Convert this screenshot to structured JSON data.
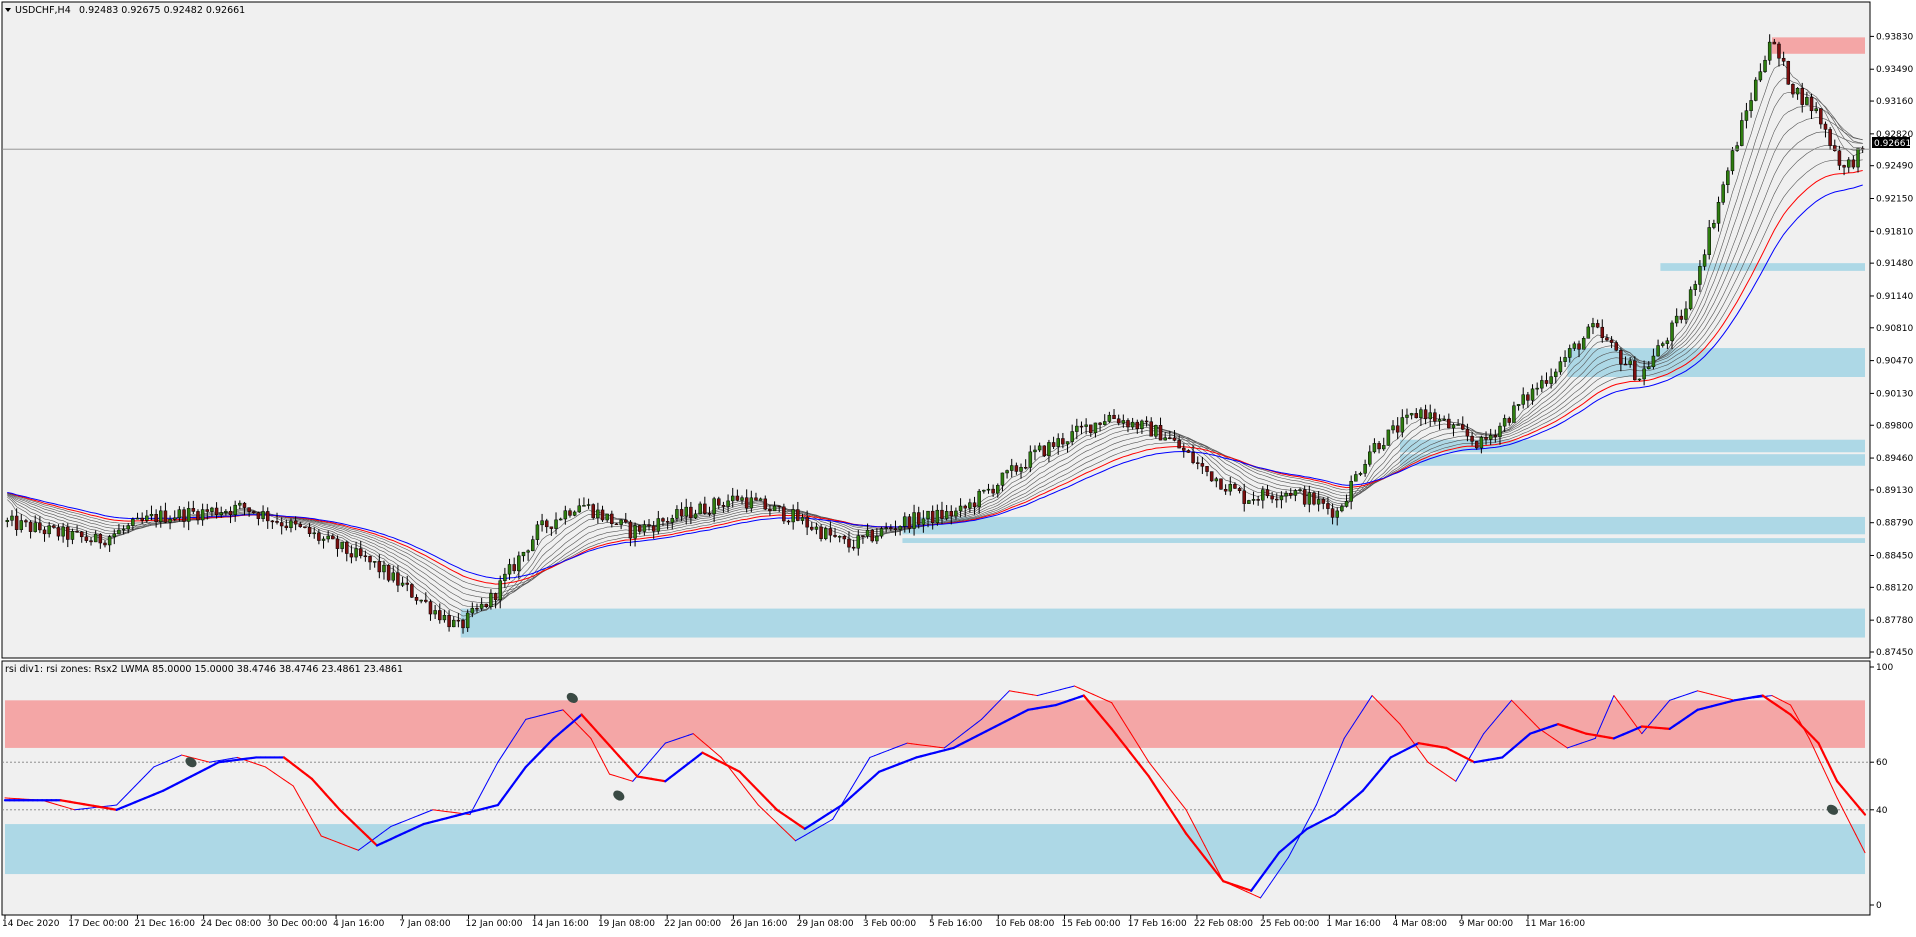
{
  "window": {
    "title": "USDCHF,H4",
    "ohlc": "0.92483 0.92675 0.92482 0.92661",
    "menu_icon": "triangle-down-icon"
  },
  "indicator": {
    "label": "rsi div1: rsi zones: Rsx2 LWMA 85.0000 15.0000 38.4746 38.4746 23.4861 23.4861"
  },
  "colors": {
    "background": "#f0f0f0",
    "candle_up": "#2e7d0f",
    "candle_down": "#7a0f0f",
    "wick": "#000000",
    "ma_red": "#ff0000",
    "ma_blue": "#0000ff",
    "ma_gray": "#555555",
    "zone_blue": "#add8e6",
    "zone_red": "#f4a6a6",
    "marker": "#3a4a44",
    "price_tag_bg": "#000000"
  },
  "chart_data": [
    {
      "type": "candlestick",
      "symbol": "USDCHF",
      "timeframe": "H4",
      "current_price": 0.92661,
      "current_price_label": "0.92661",
      "ylim": [
        0.8745,
        0.94
      ],
      "y_ticks": [
        "0.93830",
        "0.93490",
        "0.93160",
        "0.92820",
        "0.92490",
        "0.92150",
        "0.91810",
        "0.91480",
        "0.91140",
        "0.90810",
        "0.90470",
        "0.90130",
        "0.89800",
        "0.89460",
        "0.89130",
        "0.88790",
        "0.88450",
        "0.88120",
        "0.87780",
        "0.87450"
      ],
      "x_ticks": [
        "14 Dec 2020",
        "17 Dec 00:00",
        "21 Dec 16:00",
        "24 Dec 08:00",
        "30 Dec 00:00",
        "4 Jan 16:00",
        "7 Jan 08:00",
        "12 Jan 00:00",
        "14 Jan 16:00",
        "19 Jan 08:00",
        "22 Jan 00:00",
        "26 Jan 16:00",
        "29 Jan 08:00",
        "3 Feb 00:00",
        "5 Feb 16:00",
        "10 Feb 08:00",
        "15 Feb 00:00",
        "17 Feb 16:00",
        "22 Feb 08:00",
        "25 Feb 00:00",
        "1 Mar 16:00",
        "4 Mar 08:00",
        "9 Mar 00:00",
        "11 Mar 16:00"
      ],
      "bars": 400,
      "price_path": [
        [
          0,
          0.888
        ],
        [
          20,
          0.886
        ],
        [
          33,
          0.8885
        ],
        [
          52,
          0.8895
        ],
        [
          65,
          0.887
        ],
        [
          80,
          0.8835
        ],
        [
          98,
          0.877
        ],
        [
          105,
          0.88
        ],
        [
          115,
          0.887
        ],
        [
          124,
          0.89
        ],
        [
          135,
          0.887
        ],
        [
          148,
          0.889
        ],
        [
          158,
          0.8905
        ],
        [
          170,
          0.8885
        ],
        [
          182,
          0.8855
        ],
        [
          194,
          0.888
        ],
        [
          206,
          0.889
        ],
        [
          222,
          0.895
        ],
        [
          238,
          0.899
        ],
        [
          250,
          0.897
        ],
        [
          258,
          0.8935
        ],
        [
          267,
          0.8905
        ],
        [
          277,
          0.8912
        ],
        [
          287,
          0.889
        ],
        [
          294,
          0.8955
        ],
        [
          305,
          0.8995
        ],
        [
          318,
          0.896
        ],
        [
          328,
          0.901
        ],
        [
          342,
          0.908
        ],
        [
          352,
          0.903
        ],
        [
          362,
          0.91
        ],
        [
          372,
          0.926
        ],
        [
          380,
          0.938
        ],
        [
          385,
          0.933
        ],
        [
          390,
          0.9305
        ],
        [
          396,
          0.9245
        ],
        [
          400,
          0.9266
        ]
      ],
      "ma_ribbon": {
        "gray_lines": 8,
        "red_line": "EMA",
        "blue_line": "EMA"
      },
      "zones": [
        {
          "color": "red",
          "from_bar": 380,
          "to_bar": 400,
          "low": 0.9365,
          "high": 0.9382
        },
        {
          "color": "blue",
          "from_bar": 356,
          "to_bar": 400,
          "low": 0.914,
          "high": 0.9148
        },
        {
          "color": "blue",
          "from_bar": 336,
          "to_bar": 400,
          "low": 0.903,
          "high": 0.906
        },
        {
          "color": "blue",
          "from_bar": 300,
          "to_bar": 400,
          "low": 0.8952,
          "high": 0.8965
        },
        {
          "color": "blue",
          "from_bar": 300,
          "to_bar": 400,
          "low": 0.8938,
          "high": 0.895
        },
        {
          "color": "blue",
          "from_bar": 193,
          "to_bar": 400,
          "low": 0.8867,
          "high": 0.8885
        },
        {
          "color": "blue",
          "from_bar": 193,
          "to_bar": 400,
          "low": 0.8858,
          "high": 0.8863
        },
        {
          "color": "blue",
          "from_bar": 98,
          "to_bar": 400,
          "low": 0.876,
          "high": 0.879
        }
      ]
    },
    {
      "type": "line",
      "name": "rsi div1",
      "ylim": [
        0,
        100
      ],
      "y_ticks": [
        "100",
        "60",
        "40",
        "0"
      ],
      "levels": [
        60,
        40
      ],
      "zones": [
        {
          "color": "red",
          "low": 66,
          "high": 86
        },
        {
          "color": "blue",
          "low": 13,
          "high": 34
        }
      ],
      "fast_line": [
        [
          0,
          45
        ],
        [
          8,
          44
        ],
        [
          15,
          40
        ],
        [
          24,
          42
        ],
        [
          32,
          58
        ],
        [
          38,
          63
        ],
        [
          44,
          60
        ],
        [
          50,
          62
        ],
        [
          56,
          58
        ],
        [
          62,
          50
        ],
        [
          68,
          29
        ],
        [
          76,
          23
        ],
        [
          83,
          33
        ],
        [
          92,
          40
        ],
        [
          100,
          38
        ],
        [
          106,
          60
        ],
        [
          112,
          78
        ],
        [
          120,
          82
        ],
        [
          126,
          70
        ],
        [
          130,
          55
        ],
        [
          135,
          52
        ],
        [
          142,
          68
        ],
        [
          148,
          72
        ],
        [
          154,
          62
        ],
        [
          162,
          42
        ],
        [
          170,
          27
        ],
        [
          178,
          36
        ],
        [
          186,
          62
        ],
        [
          194,
          68
        ],
        [
          202,
          66
        ],
        [
          210,
          78
        ],
        [
          216,
          90
        ],
        [
          222,
          88
        ],
        [
          230,
          92
        ],
        [
          238,
          85
        ],
        [
          246,
          60
        ],
        [
          254,
          40
        ],
        [
          262,
          10
        ],
        [
          270,
          3
        ],
        [
          276,
          20
        ],
        [
          282,
          42
        ],
        [
          288,
          70
        ],
        [
          294,
          88
        ],
        [
          300,
          76
        ],
        [
          306,
          60
        ],
        [
          312,
          52
        ],
        [
          318,
          72
        ],
        [
          324,
          86
        ],
        [
          330,
          74
        ],
        [
          336,
          66
        ],
        [
          342,
          70
        ],
        [
          346,
          88
        ],
        [
          352,
          72
        ],
        [
          358,
          86
        ],
        [
          364,
          90
        ],
        [
          372,
          86
        ],
        [
          380,
          88
        ],
        [
          384,
          84
        ],
        [
          388,
          70
        ],
        [
          394,
          45
        ],
        [
          400,
          22
        ]
      ],
      "slow_line": [
        [
          0,
          44
        ],
        [
          12,
          44
        ],
        [
          24,
          40
        ],
        [
          34,
          48
        ],
        [
          40,
          54
        ],
        [
          46,
          60
        ],
        [
          54,
          62
        ],
        [
          60,
          62
        ],
        [
          66,
          53
        ],
        [
          72,
          40
        ],
        [
          80,
          25
        ],
        [
          90,
          34
        ],
        [
          100,
          39
        ],
        [
          106,
          42
        ],
        [
          112,
          58
        ],
        [
          118,
          70
        ],
        [
          124,
          80
        ],
        [
          130,
          67
        ],
        [
          136,
          54
        ],
        [
          142,
          52
        ],
        [
          150,
          64
        ],
        [
          158,
          56
        ],
        [
          166,
          40
        ],
        [
          172,
          32
        ],
        [
          180,
          42
        ],
        [
          188,
          56
        ],
        [
          196,
          62
        ],
        [
          204,
          66
        ],
        [
          212,
          74
        ],
        [
          220,
          82
        ],
        [
          226,
          84
        ],
        [
          232,
          88
        ],
        [
          238,
          74
        ],
        [
          246,
          54
        ],
        [
          254,
          30
        ],
        [
          262,
          10
        ],
        [
          268,
          6
        ],
        [
          274,
          22
        ],
        [
          280,
          32
        ],
        [
          286,
          38
        ],
        [
          292,
          48
        ],
        [
          298,
          62
        ],
        [
          304,
          68
        ],
        [
          310,
          66
        ],
        [
          316,
          60
        ],
        [
          322,
          62
        ],
        [
          328,
          72
        ],
        [
          334,
          76
        ],
        [
          340,
          72
        ],
        [
          346,
          70
        ],
        [
          352,
          75
        ],
        [
          358,
          74
        ],
        [
          364,
          82
        ],
        [
          372,
          86
        ],
        [
          378,
          88
        ],
        [
          384,
          80
        ],
        [
          390,
          68
        ],
        [
          394,
          52
        ],
        [
          400,
          38
        ]
      ],
      "markers": [
        [
          40,
          60
        ],
        [
          122,
          87
        ],
        [
          132,
          46
        ],
        [
          393,
          40
        ]
      ]
    }
  ]
}
